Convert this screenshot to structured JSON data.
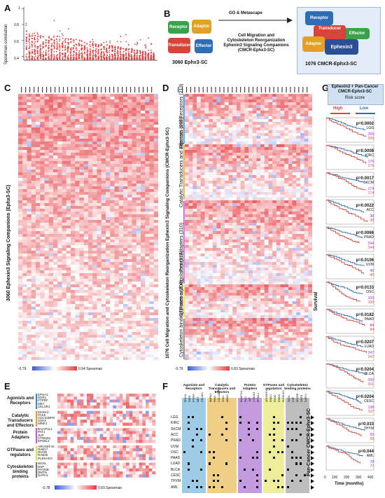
{
  "panels": {
    "A": "A",
    "B": "B",
    "C": "C",
    "D": "D",
    "E": "E",
    "F": "F",
    "G": "G"
  },
  "panelA": {
    "ylabel": "Spearman correlation",
    "yticks": [
      "0.4",
      "0.6",
      "0.8",
      "1"
    ]
  },
  "panelB": {
    "left_caption": "3060 Ephx3-SC",
    "arrow_label": "GO & Metascape",
    "title_lines": [
      "Cell Migration and",
      "Cytoskeleton Reorganization",
      "Ephexin3 Signaling Companions",
      "(CMCR-Ephx3-SC)"
    ],
    "right_caption": "1076 CMCR-Ephx3-SC",
    "pieces": {
      "receptor": "Receptor",
      "adaptor": "Adaptor",
      "transducer": "Transducer",
      "effector": "Effector",
      "center": "Ephexin3"
    },
    "colors": {
      "receptor": "#3aa34a",
      "adaptor": "#e2a126",
      "transducer": "#d8433a",
      "effector": "#2f6db5"
    }
  },
  "panelC": {
    "side_label": "3060 Ephexin3 Signaling Companions (Ephx3-SC)",
    "min": "-0.79",
    "max": "0.94 Spearman"
  },
  "panelD": {
    "side_label": "1076 Cell Migration and Cytoskeleton Reorganization Ephexin3 Signaling Companions (CMCR-Ephx3-SC)",
    "groups": [
      "Agonists and Receptors (213)",
      "Catalytic Transducers and Effectors (208)",
      "Protein Adapters (310)",
      "GTPases and regulators (139)",
      "Cytoskeleton binding proteins (206)"
    ],
    "min": "-0.79",
    "max": "0.83 Spearman"
  },
  "panelE": {
    "groups": [
      {
        "label": "Agonists and Receptors",
        "genes": [
          "EPHA1",
          "DDR1",
          "PTPRF",
          "MET",
          "CELSR1"
        ]
      },
      {
        "label": "Catalytic Transducers and Effectors",
        "genes": [
          "MARK2",
          "PAK6",
          "CDC42BPG",
          "SSH3",
          "MINK1"
        ]
      },
      {
        "label": "Protein Adapters",
        "genes": [
          "BAIAP2L1",
          "PATJ",
          "JUP",
          "CTNND1",
          "EPS8L2"
        ]
      },
      {
        "label": "GTPases and regulators",
        "genes": [
          "ARHGEF16",
          "RAB17",
          "RHOD",
          "RAB25",
          "PLEKHG3"
        ]
      },
      {
        "label": "Cytoskeleton binding proteins",
        "genes": [
          "WASL",
          "DSP",
          "MYO5B",
          "DMTN",
          "DAPH1"
        ]
      }
    ],
    "min": "-0.78",
    "max": "0.83 Spearman"
  },
  "panelF": {
    "headers": [
      "Agonists and Receptors",
      "Catalytic Transducers and Effectors",
      "Protein Adapters",
      "GTPases and regulators",
      "Cytoskeleton binding proteins"
    ],
    "genes": [
      [
        "EPHA1",
        "DDR1",
        "PTPRF",
        "MET",
        "CELSR1"
      ],
      [
        "MARK2",
        "PAK6",
        "CDC42BPG",
        "SSH3",
        "MINK1"
      ],
      [
        "BAIAP2L1",
        "PATJ",
        "JUP",
        "CTNND1",
        "EPS8L2"
      ],
      [
        "ARHGEF16",
        "RAB17",
        "RHOD",
        "RAB25",
        "PLEKHG3"
      ],
      [
        "WASL",
        "DSP",
        "MYO5B",
        "DMTN",
        "DAPH1"
      ]
    ],
    "cancers": [
      "LGG",
      "KIRC",
      "SKCM",
      "ACC",
      "PRAD",
      "UVM",
      "OSC",
      "PAAD",
      "LUAD",
      "BLCA",
      "CESC",
      "THYM",
      "AML"
    ],
    "side_label": "Pan-Cancer CMCR-Ephx3-SC",
    "colors": [
      "#9ecbe6",
      "#efcf86",
      "#c59be0",
      "#eded9a",
      "#bdbdbd"
    ]
  },
  "panelG": {
    "header_title": "Ephexin3 + Pan-Cancer",
    "header_sub": "CMCR-Ephx3-SC",
    "risk": "Risk score",
    "high": "High",
    "low": "Low",
    "ylabel": "Survival",
    "xlabel": "Time (months)",
    "xticks": [
      "0",
      "100",
      "200",
      "300",
      "400"
    ],
    "rows": [
      {
        "p": "p=0.0002",
        "c": "LGG",
        "n1": "255",
        "n2": "255"
      },
      {
        "p": "p=0.0008",
        "c": "KIRC",
        "n1": "176",
        "n2": "176"
      },
      {
        "p": "p=0.0017",
        "c": "SKCM",
        "n1": "174",
        "n2": "174"
      },
      {
        "p": "p=0.0022",
        "c": "ACC",
        "n1": "38",
        "n2": "38"
      },
      {
        "p": "p=0.0066",
        "c": "PRAD",
        "n1": "244",
        "n2": "244"
      },
      {
        "p": "p=0.0106",
        "c": "UVM",
        "n1": "40",
        "n2": "40"
      },
      {
        "p": "p=0.0133",
        "c": "OSC",
        "n1": "100",
        "n2": "100"
      },
      {
        "p": "p=0.0182",
        "c": "PAAD",
        "n1": "84",
        "n2": "84"
      },
      {
        "p": "p=0.0207",
        "c": "LUAD",
        "n1": "247",
        "n2": "247"
      },
      {
        "p": "p=0.0204",
        "c": "BLCA",
        "n1": "200",
        "n2": "201"
      },
      {
        "p": "p=0.0204",
        "c": "CESC",
        "n1": "138",
        "n2": "137"
      },
      {
        "p": "p=0.033",
        "c": "THYM",
        "n1": "59",
        "n2": "59"
      },
      {
        "p": "p=0.044",
        "c": "AML",
        "n1": "78",
        "n2": "77"
      }
    ]
  }
}
